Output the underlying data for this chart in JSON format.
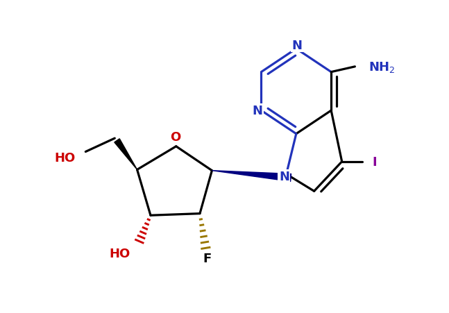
{
  "bg_color": "#ffffff",
  "bond_color": "#000000",
  "bond_lw": 2.3,
  "blue": "#2233bb",
  "red": "#cc0000",
  "purple": "#880099",
  "darkgold": "#997700",
  "navy": "#000080",
  "figsize": [
    6.47,
    4.52
  ],
  "dpi": 100,
  "xlim": [
    0,
    10
  ],
  "ylim": [
    0,
    7
  ]
}
